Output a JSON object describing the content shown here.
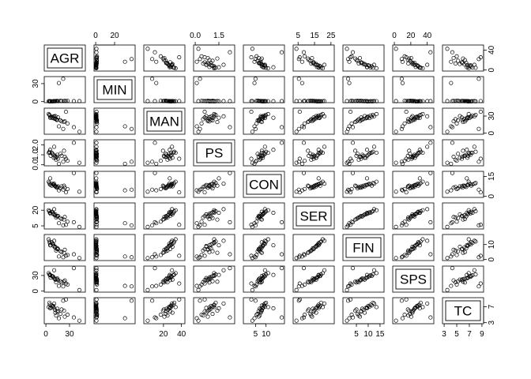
{
  "chart_data": {
    "type": "scatter",
    "subtype": "scatterplot-matrix",
    "variables": [
      "AGR",
      "MIN",
      "MAN",
      "PS",
      "CON",
      "SER",
      "FIN",
      "SPS",
      "TC"
    ],
    "ranges": {
      "AGR": [
        0,
        48
      ],
      "MIN": [
        0,
        40
      ],
      "MAN": [
        0,
        42
      ],
      "PS": [
        0,
        2.4
      ],
      "CON": [
        0,
        18
      ],
      "SER": [
        3,
        26
      ],
      "FIN": [
        0,
        16
      ],
      "SPS": [
        0,
        46
      ],
      "TC": [
        3,
        9
      ]
    },
    "ticks": {
      "top": {
        "MIN": {
          "values": [
            0,
            20
          ],
          "labels": [
            "0",
            "20"
          ]
        },
        "PS": {
          "values": [
            0,
            1.5
          ],
          "labels": [
            "0.0",
            "1.5"
          ]
        },
        "SER": {
          "values": [
            5,
            15,
            25
          ],
          "labels": [
            "5",
            "15",
            "25"
          ]
        },
        "SPS": {
          "values": [
            0,
            20,
            40
          ],
          "labels": [
            "0",
            "20",
            "40"
          ]
        }
      },
      "bottom": {
        "AGR": {
          "values": [
            0,
            30
          ],
          "labels": [
            "0",
            "30"
          ]
        },
        "MAN": {
          "values": [
            20,
            40
          ],
          "labels": [
            "20",
            "40"
          ]
        },
        "CON": {
          "values": [
            5,
            10
          ],
          "labels": [
            "5",
            "10"
          ]
        },
        "FIN": {
          "values": [
            5,
            10,
            15
          ],
          "labels": [
            "5",
            "10",
            "15"
          ]
        },
        "TC": {
          "values": [
            3,
            5,
            7,
            9
          ],
          "labels": [
            "3",
            "5",
            "7",
            "9"
          ]
        }
      },
      "left": {
        "MIN": {
          "values": [
            0,
            30
          ],
          "labels": [
            "0",
            "30"
          ]
        },
        "PS": {
          "values": [
            0,
            1,
            2
          ],
          "labels": [
            "0.0",
            "1.0",
            "2.0"
          ]
        },
        "SER": {
          "values": [
            5,
            20
          ],
          "labels": [
            "5",
            "20"
          ]
        },
        "SPS": {
          "values": [
            0,
            30
          ],
          "labels": [
            "0",
            "30"
          ]
        }
      },
      "right": {
        "AGR": {
          "values": [
            0,
            40
          ],
          "labels": [
            "0",
            "40"
          ]
        },
        "MAN": {
          "values": [
            0,
            30
          ],
          "labels": [
            "0",
            "30"
          ]
        },
        "CON": {
          "values": [
            0,
            15
          ],
          "labels": [
            "0",
            "15"
          ]
        },
        "FIN": {
          "values": [
            0,
            10
          ],
          "labels": [
            "0",
            "10"
          ]
        },
        "TC": {
          "values": [
            3,
            7
          ],
          "labels": [
            "3",
            "7"
          ]
        }
      }
    },
    "observations": {
      "AGR": [
        6.0,
        8.5,
        12.0,
        14.5,
        23.0,
        24.0,
        42.5,
        5.0,
        11.5,
        15.5,
        4.5,
        10.0,
        18.5,
        22.0,
        9.5,
        3.5,
        13.0,
        20.0,
        27.5,
        7.5,
        16.5,
        10.5,
        14.0,
        5.5,
        35.5,
        25.5
      ],
      "MIN": [
        0.3,
        0.4,
        0.6,
        0.9,
        0.9,
        1.2,
        0.8,
        0.6,
        0.7,
        0.8,
        0.5,
        0.8,
        1.3,
        38.0,
        0.4,
        0.7,
        0.9,
        1.0,
        1.4,
        0.5,
        31.0,
        0.8,
        1.1,
        0.6,
        0.8,
        0.9
      ],
      "MAN": [
        28.0,
        26.5,
        30.0,
        23.5,
        19.5,
        21.0,
        2.5,
        31.0,
        25.0,
        27.5,
        32.0,
        26.0,
        22.5,
        7.5,
        29.0,
        33.5,
        24.5,
        20.5,
        17.0,
        28.5,
        12.0,
        29.5,
        23.0,
        27.0,
        10.5,
        37.5
      ],
      "PS": [
        0.9,
        1.1,
        0.7,
        1.0,
        1.4,
        0.8,
        0.2,
        1.2,
        0.9,
        0.6,
        1.3,
        0.7,
        1.1,
        0.3,
        1.0,
        1.2,
        0.5,
        0.9,
        0.4,
        1.2,
        0.1,
        1.8,
        0.8,
        1.5,
        2.2,
        0.6
      ],
      "CON": [
        8.5,
        9.5,
        7.5,
        7.0,
        8.0,
        6.5,
        3.5,
        9.0,
        8.0,
        7.5,
        10.0,
        8.5,
        6.0,
        5.0,
        9.0,
        11.0,
        7.0,
        7.5,
        5.5,
        8.0,
        4.5,
        9.5,
        6.5,
        13.5,
        17.5,
        3.0
      ],
      "SER": [
        16.5,
        18.0,
        16.0,
        14.0,
        11.0,
        13.5,
        4.0,
        17.5,
        15.0,
        14.5,
        19.0,
        16.0,
        12.5,
        5.5,
        17.0,
        20.0,
        13.0,
        11.5,
        9.0,
        18.5,
        7.5,
        21.0,
        14.5,
        17.5,
        8.5,
        6.0
      ],
      "FIN": [
        9.5,
        10.5,
        8.5,
        7.5,
        4.5,
        6.5,
        1.0,
        11.0,
        8.0,
        7.0,
        12.0,
        9.0,
        5.5,
        1.5,
        10.0,
        13.5,
        6.0,
        5.0,
        3.0,
        11.5,
        2.0,
        12.5,
        7.0,
        9.5,
        3.5,
        2.5
      ],
      "SPS": [
        26.0,
        28.5,
        22.0,
        24.5,
        18.0,
        20.5,
        2.0,
        30.5,
        23.5,
        21.0,
        32.0,
        25.0,
        19.0,
        9.0,
        27.5,
        34.5,
        17.0,
        16.5,
        12.5,
        29.0,
        10.0,
        40.0,
        22.5,
        31.0,
        44.0,
        14.5
      ],
      "TC": [
        6.8,
        7.0,
        5.5,
        6.5,
        6.0,
        4.5,
        3.5,
        7.5,
        6.2,
        5.8,
        8.0,
        6.7,
        5.2,
        8.5,
        7.2,
        6.9,
        4.8,
        6.3,
        5.0,
        7.3,
        4.1,
        7.8,
        5.9,
        6.6,
        4.3,
        8.8
      ]
    },
    "grid": false,
    "legend": "none"
  }
}
